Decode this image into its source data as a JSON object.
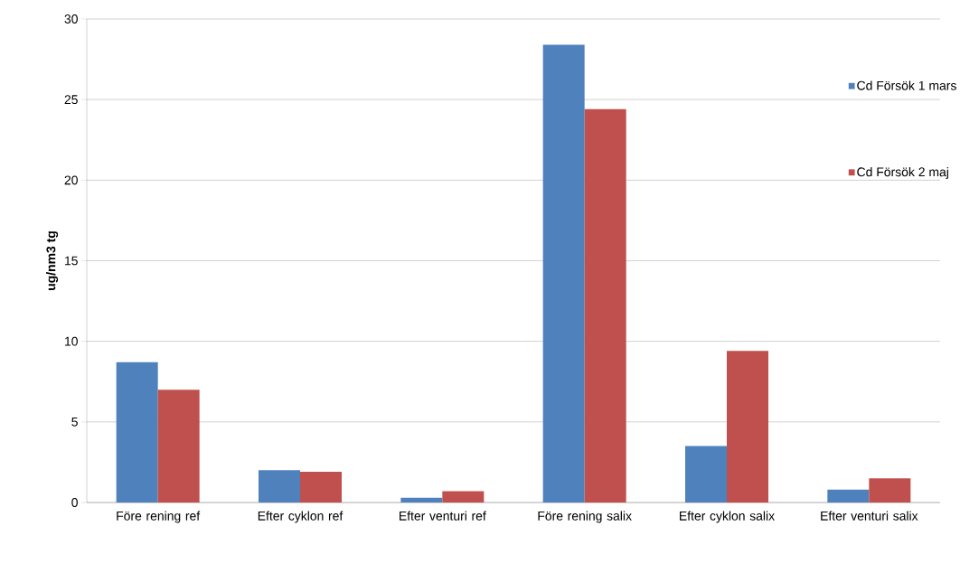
{
  "chart_data": {
    "type": "bar",
    "ylabel": "ug/nm3 tg",
    "categories": [
      "Före rening ref",
      "Efter cyklon ref",
      "Efter venturi ref",
      "Före rening salix",
      "Efter cyklon salix",
      "Efter venturi salix"
    ],
    "series": [
      {
        "name": "Cd Försök 1 mars",
        "color": "#4f81bd",
        "values": [
          8.7,
          2.0,
          0.3,
          28.4,
          3.5,
          0.8
        ]
      },
      {
        "name": "Cd Försök 2 maj",
        "color": "#c0504d",
        "values": [
          7.0,
          1.9,
          0.7,
          24.4,
          9.4,
          1.5
        ]
      }
    ],
    "ylim": [
      0,
      30
    ],
    "yticks": [
      0,
      5,
      10,
      15,
      20,
      25,
      30
    ],
    "grid": "y",
    "legend": "right"
  }
}
